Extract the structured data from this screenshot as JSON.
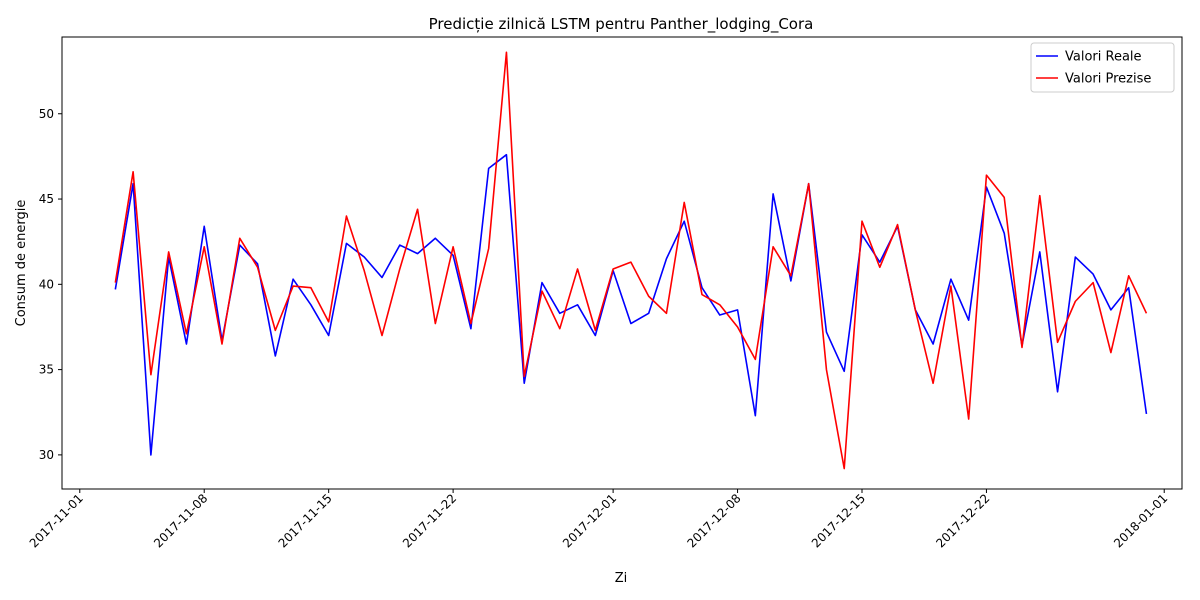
{
  "chart_data": {
    "type": "line",
    "title": "Predicție zilnică LSTM pentru Panther_lodging_Cora",
    "xlabel": "Zi",
    "ylabel": "Consum de energie",
    "x_start": "2017-11-03",
    "x_ticks": [
      "2017-11-01",
      "2017-11-08",
      "2017-11-15",
      "2017-11-22",
      "2017-12-01",
      "2017-12-08",
      "2017-12-15",
      "2017-12-22",
      "2018-01-01"
    ],
    "x_range": [
      "2017-10-31",
      "2018-01-02"
    ],
    "y_ticks": [
      30,
      35,
      40,
      45,
      50
    ],
    "ylim": [
      28,
      54.5
    ],
    "legend_position": "top-right",
    "series": [
      {
        "name": "Valori Reale",
        "color": "#0000ff",
        "values": [
          39.7,
          45.9,
          30.0,
          41.6,
          36.5,
          43.4,
          36.7,
          42.3,
          41.2,
          35.8,
          40.3,
          38.8,
          37.0,
          42.4,
          41.6,
          40.4,
          42.3,
          41.8,
          42.7,
          41.7,
          37.4,
          46.8,
          47.6,
          34.2,
          40.1,
          38.3,
          38.8,
          37.0,
          40.8,
          37.7,
          38.3,
          41.5,
          43.7,
          39.8,
          38.2,
          38.5,
          32.3,
          45.3,
          40.2,
          45.9,
          37.2,
          34.9,
          42.9,
          41.3,
          43.4,
          38.5,
          36.5,
          40.3,
          37.9,
          45.7,
          43.0,
          36.4,
          41.9,
          33.7,
          41.6,
          40.6,
          38.5,
          39.8,
          32.4
        ]
      },
      {
        "name": "Valori Prezise",
        "color": "#ff0000",
        "values": [
          40.1,
          46.6,
          34.7,
          41.9,
          37.1,
          42.2,
          36.5,
          42.7,
          41.0,
          37.3,
          39.9,
          39.8,
          37.8,
          44.0,
          40.8,
          37.0,
          40.9,
          44.4,
          37.7,
          42.2,
          37.7,
          42.1,
          53.6,
          34.6,
          39.6,
          37.4,
          40.9,
          37.3,
          40.9,
          41.3,
          39.3,
          38.3,
          44.8,
          39.4,
          38.8,
          37.5,
          35.6,
          42.2,
          40.5,
          45.9,
          35.0,
          29.2,
          43.7,
          41.0,
          43.5,
          38.5,
          34.2,
          39.9,
          32.1,
          46.4,
          45.1,
          36.3,
          45.2,
          36.6,
          39.0,
          40.1,
          36.0,
          40.5,
          38.3
        ]
      }
    ]
  }
}
